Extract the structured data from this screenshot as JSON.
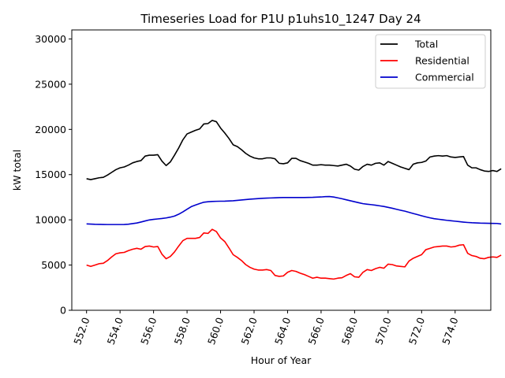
{
  "chart_data": {
    "type": "line",
    "title": "Timeseries Load for P1U p1uhs10_1247  Day 24",
    "xlabel": "Hour of Year",
    "ylabel": "kW total",
    "xlim": [
      551.12,
      576.13
    ],
    "ylim": [
      0,
      31000
    ],
    "x_ticks": [
      552,
      554,
      556,
      558,
      560,
      562,
      564,
      566,
      568,
      570,
      572,
      574
    ],
    "x_tick_labels": [
      "552.0",
      "554.0",
      "556.0",
      "558.0",
      "560.0",
      "562.0",
      "564.0",
      "566.0",
      "568.0",
      "570.0",
      "572.0",
      "574.0"
    ],
    "y_ticks": [
      0,
      5000,
      10000,
      15000,
      20000,
      25000,
      30000
    ],
    "y_tick_labels": [
      "0",
      "5000",
      "10000",
      "15000",
      "20000",
      "25000",
      "30000"
    ],
    "grid": false,
    "legend_position": "top-right",
    "x_start": 552,
    "x_step": 0.25,
    "series": [
      {
        "name": "Total",
        "color": "#000000",
        "values": [
          14550,
          14450,
          14550,
          14650,
          14700,
          14950,
          15250,
          15550,
          15750,
          15850,
          16050,
          16300,
          16450,
          16550,
          17050,
          17150,
          17150,
          17200,
          16500,
          16000,
          16400,
          17150,
          17950,
          18850,
          19500,
          19700,
          19900,
          20050,
          20600,
          20650,
          21000,
          20850,
          20150,
          19600,
          19000,
          18300,
          18100,
          17750,
          17350,
          17050,
          16850,
          16750,
          16750,
          16850,
          16850,
          16750,
          16250,
          16200,
          16300,
          16800,
          16800,
          16550,
          16400,
          16250,
          16050,
          16050,
          16100,
          16050,
          16050,
          16000,
          15950,
          16050,
          16150,
          15950,
          15600,
          15500,
          15900,
          16150,
          16050,
          16250,
          16300,
          16050,
          16450,
          16250,
          16050,
          15850,
          15700,
          15550,
          16150,
          16300,
          16350,
          16500,
          16950,
          17050,
          17100,
          17050,
          17100,
          16950,
          16900,
          16950,
          17000,
          16050,
          15750,
          15750,
          15550,
          15400,
          15350,
          15450,
          15350,
          15650
        ]
      },
      {
        "name": "Residential",
        "color": "#ff0000",
        "values": [
          5000,
          4850,
          5000,
          5150,
          5200,
          5500,
          5900,
          6250,
          6350,
          6400,
          6600,
          6750,
          6850,
          6750,
          7050,
          7100,
          7000,
          7050,
          6200,
          5700,
          5950,
          6450,
          7100,
          7700,
          7950,
          7950,
          7950,
          8050,
          8550,
          8500,
          8950,
          8700,
          8000,
          7600,
          6900,
          6150,
          5850,
          5500,
          5050,
          4750,
          4550,
          4450,
          4450,
          4500,
          4400,
          3850,
          3750,
          3800,
          4200,
          4400,
          4300,
          4100,
          3950,
          3750,
          3550,
          3650,
          3550,
          3550,
          3500,
          3450,
          3550,
          3600,
          3850,
          4050,
          3700,
          3650,
          4200,
          4500,
          4400,
          4600,
          4750,
          4650,
          5100,
          5050,
          4900,
          4850,
          4800,
          5450,
          5750,
          5950,
          6150,
          6700,
          6850,
          7000,
          7050,
          7100,
          7100,
          7000,
          7050,
          7200,
          7250,
          6300,
          6050,
          5950,
          5750,
          5700,
          5850,
          5900,
          5850,
          6100
        ]
      },
      {
        "name": "Commercial",
        "color": "#0000cd",
        "values": [
          9550,
          9530,
          9510,
          9500,
          9490,
          9480,
          9480,
          9480,
          9480,
          9490,
          9520,
          9580,
          9650,
          9760,
          9880,
          9990,
          10050,
          10100,
          10150,
          10210,
          10300,
          10420,
          10620,
          10880,
          11170,
          11460,
          11640,
          11800,
          11950,
          12000,
          12030,
          12050,
          12060,
          12070,
          12090,
          12110,
          12150,
          12200,
          12240,
          12280,
          12320,
          12350,
          12380,
          12400,
          12420,
          12440,
          12460,
          12470,
          12470,
          12470,
          12470,
          12470,
          12470,
          12480,
          12490,
          12510,
          12530,
          12570,
          12580,
          12520,
          12430,
          12330,
          12220,
          12110,
          12000,
          11890,
          11790,
          11730,
          11680,
          11620,
          11550,
          11480,
          11380,
          11280,
          11170,
          11060,
          10960,
          10830,
          10700,
          10580,
          10450,
          10330,
          10220,
          10130,
          10070,
          10010,
          9950,
          9900,
          9850,
          9800,
          9750,
          9710,
          9680,
          9660,
          9640,
          9630,
          9620,
          9610,
          9600,
          9540
        ]
      }
    ]
  }
}
